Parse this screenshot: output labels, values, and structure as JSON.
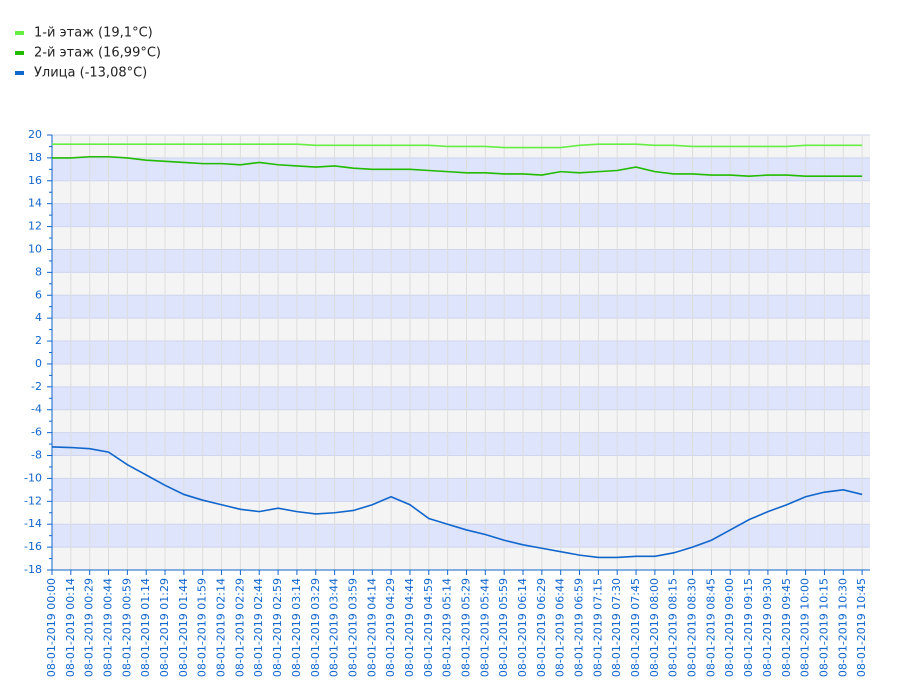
{
  "chart_data": {
    "type": "line",
    "categories": [
      "08-01-2019 00:00",
      "08-01-2019 00:14",
      "08-01-2019 00:29",
      "08-01-2019 00:44",
      "08-01-2019 00:59",
      "08-01-2019 01:14",
      "08-01-2019 01:29",
      "08-01-2019 01:44",
      "08-01-2019 01:59",
      "08-01-2019 02:14",
      "08-01-2019 02:29",
      "08-01-2019 02:44",
      "08-01-2019 02:59",
      "08-01-2019 03:14",
      "08-01-2019 03:29",
      "08-01-2019 03:44",
      "08-01-2019 03:59",
      "08-01-2019 04:14",
      "08-01-2019 04:29",
      "08-01-2019 04:44",
      "08-01-2019 04:59",
      "08-01-2019 05:14",
      "08-01-2019 05:29",
      "08-01-2019 05:44",
      "08-01-2019 05:59",
      "08-01-2019 06:14",
      "08-01-2019 06:29",
      "08-01-2019 06:44",
      "08-01-2019 06:59",
      "08-01-2019 07:15",
      "08-01-2019 07:30",
      "08-01-2019 07:45",
      "08-01-2019 08:00",
      "08-01-2019 08:15",
      "08-01-2019 08:30",
      "08-01-2019 08:45",
      "08-01-2019 09:00",
      "08-01-2019 09:15",
      "08-01-2019 09:30",
      "08-01-2019 09:45",
      "08-01-2019 10:00",
      "08-01-2019 10:15",
      "08-01-2019 10:30",
      "08-01-2019 10:45"
    ],
    "series": [
      {
        "name": "1-й этаж (19,1°C)",
        "color": "#66ee44",
        "values": [
          19.2,
          19.2,
          19.2,
          19.2,
          19.2,
          19.2,
          19.2,
          19.2,
          19.2,
          19.2,
          19.2,
          19.2,
          19.2,
          19.2,
          19.1,
          19.1,
          19.1,
          19.1,
          19.1,
          19.1,
          19.1,
          19.0,
          19.0,
          19.0,
          18.9,
          18.9,
          18.9,
          18.9,
          19.1,
          19.2,
          19.2,
          19.2,
          19.1,
          19.1,
          19.0,
          19.0,
          19.0,
          19.0,
          19.0,
          19.0,
          19.1,
          19.1,
          19.1,
          19.1
        ]
      },
      {
        "name": "2-й этаж (16,99°C)",
        "color": "#22bb00",
        "values": [
          18.0,
          18.0,
          18.1,
          18.1,
          18.0,
          17.8,
          17.7,
          17.6,
          17.5,
          17.5,
          17.4,
          17.6,
          17.4,
          17.3,
          17.2,
          17.3,
          17.1,
          17.0,
          17.0,
          17.0,
          16.9,
          16.8,
          16.7,
          16.7,
          16.6,
          16.6,
          16.5,
          16.8,
          16.7,
          16.8,
          16.9,
          17.2,
          16.8,
          16.6,
          16.6,
          16.5,
          16.5,
          16.4,
          16.5,
          16.5,
          16.4,
          16.4,
          16.4,
          16.4
        ]
      },
      {
        "name": "Улица (-13,08°C)",
        "color": "#1166cc",
        "values": [
          -7.25,
          -7.3,
          -7.4,
          -7.7,
          -8.8,
          -9.7,
          -10.6,
          -11.4,
          -11.9,
          -12.3,
          -12.7,
          -12.9,
          -12.6,
          -12.9,
          -13.1,
          -13.0,
          -12.8,
          -12.3,
          -11.6,
          -12.3,
          -13.5,
          -14.0,
          -14.5,
          -14.9,
          -15.4,
          -15.8,
          -16.1,
          -16.4,
          -16.7,
          -16.9,
          -16.9,
          -16.8,
          -16.8,
          -16.5,
          -16.0,
          -15.4,
          -14.5,
          -13.6,
          -12.9,
          -12.3,
          -11.6,
          -11.2,
          -11.0,
          -11.4
        ]
      }
    ],
    "ylim": [
      -18,
      20
    ],
    "yticks": [
      -18,
      -16,
      -14,
      -12,
      -10,
      -8,
      -6,
      -4,
      -2,
      0,
      2,
      4,
      6,
      8,
      10,
      12,
      14,
      16,
      18,
      20
    ],
    "grid": true
  }
}
